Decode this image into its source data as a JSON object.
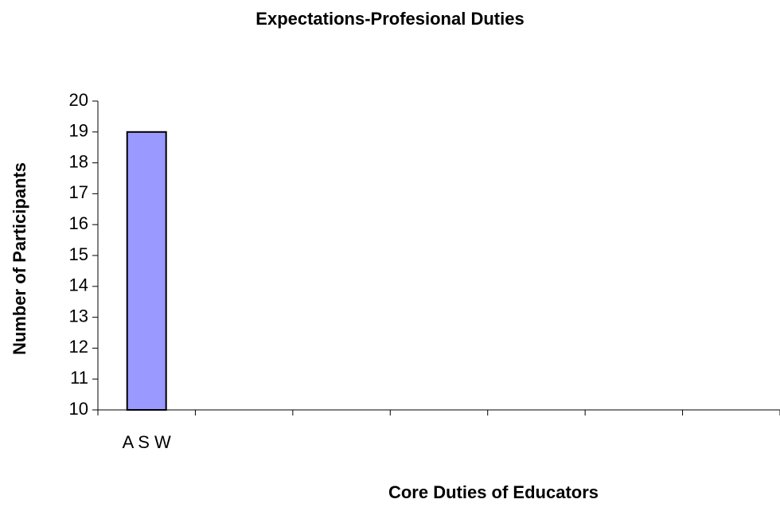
{
  "chart_data": {
    "type": "bar",
    "title": "Expectations-Profesional Duties",
    "x_label": "Core Duties of Educators",
    "y_label": "Number of Participants",
    "categories": [
      "A S W",
      null,
      null,
      null,
      null,
      null,
      null
    ],
    "values": [
      19,
      null,
      null,
      null,
      null,
      null,
      null
    ],
    "color": "#9999ff",
    "ylim": [
      10,
      20
    ],
    "yticks": [
      10,
      11,
      12,
      13,
      14,
      15,
      16,
      17,
      18,
      19,
      20
    ],
    "grid": false
  }
}
